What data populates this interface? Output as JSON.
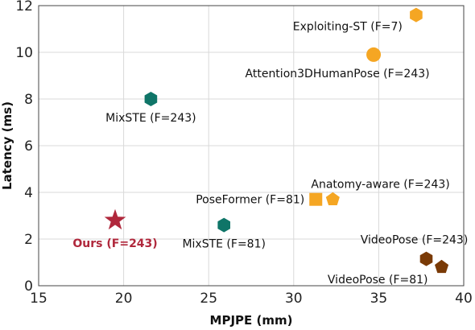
{
  "chart_data": {
    "type": "scatter",
    "xlabel": "MPJPE (mm)",
    "ylabel": "Latency (ms)",
    "xlim": [
      15,
      40
    ],
    "ylim": [
      0,
      12
    ],
    "xticks": [
      15,
      20,
      25,
      30,
      35,
      40
    ],
    "yticks": [
      0,
      2,
      4,
      6,
      8,
      10,
      12
    ],
    "grid": true,
    "colors": {
      "orange": "#f5a623",
      "teal": "#0f7568",
      "brown": "#7a3a06",
      "red": "#b0283c"
    },
    "points": [
      {
        "label": "Exploiting-ST (F=7)",
        "x": 37.2,
        "y": 11.6,
        "marker": "hexagon",
        "color": "orange",
        "label_anchor": "end",
        "label_side": "below-left"
      },
      {
        "label": "Attention3DHumanPose (F=243)",
        "x": 34.7,
        "y": 9.9,
        "marker": "circle",
        "color": "orange",
        "label_anchor": "middle",
        "label_side": "below"
      },
      {
        "label": "MixSTE (F=243)",
        "x": 21.6,
        "y": 8.0,
        "marker": "hexagon",
        "color": "teal",
        "label_anchor": "middle",
        "label_side": "below"
      },
      {
        "label": "Anatomy-aware (F=243)",
        "x": 32.3,
        "y": 3.7,
        "marker": "pentagon",
        "color": "orange",
        "label_anchor": "start",
        "label_side": "above"
      },
      {
        "label": "PoseFormer (F=81)",
        "x": 31.3,
        "y": 3.7,
        "marker": "square",
        "color": "orange",
        "label_anchor": "end",
        "label_side": "left"
      },
      {
        "label": "Ours (F=243)",
        "x": 19.5,
        "y": 2.8,
        "marker": "star",
        "color": "red",
        "label_anchor": "middle",
        "label_side": "below",
        "highlight": true
      },
      {
        "label": "MixSTE (F=81)",
        "x": 25.9,
        "y": 2.6,
        "marker": "hexagon",
        "color": "teal",
        "label_anchor": "middle",
        "label_side": "below"
      },
      {
        "label": "VideoPose (F=243)",
        "x": 37.8,
        "y": 1.15,
        "marker": "hexagon",
        "color": "brown",
        "label_anchor": "middle",
        "label_side": "above"
      },
      {
        "label": "VideoPose (F=81)",
        "x": 38.7,
        "y": 0.8,
        "marker": "pentagon",
        "color": "brown",
        "label_anchor": "end",
        "label_side": "below-left"
      }
    ]
  }
}
